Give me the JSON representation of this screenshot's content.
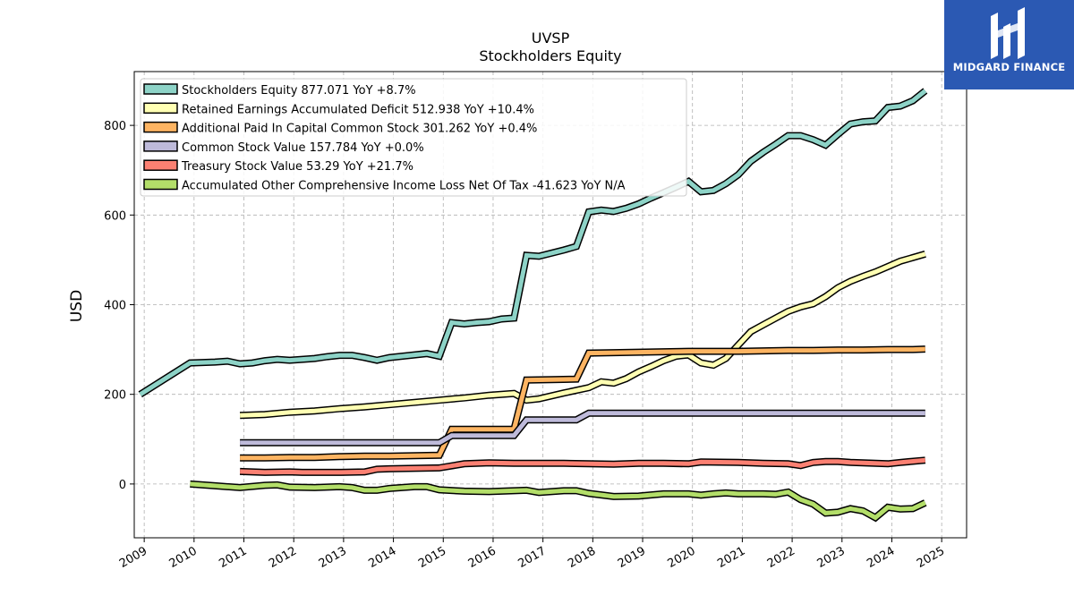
{
  "chart_data": {
    "type": "line",
    "title": "UVSP",
    "subtitle": "Stockholders  Equity",
    "ylabel": "USD",
    "xlabel": "",
    "xlim": [
      2008.8,
      2025.5
    ],
    "ylim": [
      -120,
      920
    ],
    "x_ticks": [
      2009,
      2010,
      2011,
      2012,
      2013,
      2014,
      2015,
      2016,
      2017,
      2018,
      2019,
      2020,
      2021,
      2022,
      2023,
      2024,
      2025
    ],
    "y_ticks": [
      0,
      200,
      400,
      600,
      800
    ],
    "grid": true,
    "legend_position": "top-left",
    "series": [
      {
        "name": "Stockholders Equity  877.071 YoY +8.7%",
        "color": "#8dd3c7",
        "points": [
          [
            2008.92,
            200
          ],
          [
            2009.92,
            270
          ],
          [
            2010.17,
            271
          ],
          [
            2010.42,
            272
          ],
          [
            2010.67,
            274
          ],
          [
            2010.92,
            268
          ],
          [
            2011.17,
            270
          ],
          [
            2011.42,
            275
          ],
          [
            2011.67,
            278
          ],
          [
            2011.92,
            276
          ],
          [
            2012.17,
            278
          ],
          [
            2012.42,
            280
          ],
          [
            2012.67,
            284
          ],
          [
            2012.92,
            287
          ],
          [
            2013.17,
            287
          ],
          [
            2013.42,
            282
          ],
          [
            2013.67,
            276
          ],
          [
            2013.92,
            282
          ],
          [
            2014.17,
            285
          ],
          [
            2014.42,
            288
          ],
          [
            2014.67,
            291
          ],
          [
            2014.92,
            285
          ],
          [
            2015.17,
            360
          ],
          [
            2015.42,
            357
          ],
          [
            2015.67,
            360
          ],
          [
            2015.92,
            362
          ],
          [
            2016.17,
            368
          ],
          [
            2016.42,
            370
          ],
          [
            2016.67,
            510
          ],
          [
            2016.92,
            508
          ],
          [
            2017.17,
            515
          ],
          [
            2017.42,
            522
          ],
          [
            2017.67,
            530
          ],
          [
            2017.92,
            607
          ],
          [
            2018.17,
            611
          ],
          [
            2018.42,
            608
          ],
          [
            2018.67,
            615
          ],
          [
            2018.92,
            625
          ],
          [
            2019.17,
            638
          ],
          [
            2019.42,
            650
          ],
          [
            2019.67,
            662
          ],
          [
            2019.92,
            675
          ],
          [
            2020.17,
            652
          ],
          [
            2020.42,
            655
          ],
          [
            2020.67,
            670
          ],
          [
            2020.92,
            690
          ],
          [
            2021.17,
            720
          ],
          [
            2021.42,
            740
          ],
          [
            2021.67,
            758
          ],
          [
            2021.92,
            777
          ],
          [
            2022.17,
            777
          ],
          [
            2022.42,
            768
          ],
          [
            2022.67,
            756
          ],
          [
            2022.92,
            780
          ],
          [
            2023.17,
            803
          ],
          [
            2023.42,
            808
          ],
          [
            2023.67,
            810
          ],
          [
            2023.92,
            840
          ],
          [
            2024.17,
            843
          ],
          [
            2024.42,
            855
          ],
          [
            2024.67,
            877
          ]
        ]
      },
      {
        "name": "Retained Earnings Accumulated Deficit  512.938 YoY +10.4%",
        "color": "#ffffb3",
        "points": [
          [
            2010.92,
            153
          ],
          [
            2011.42,
            155
          ],
          [
            2011.92,
            160
          ],
          [
            2012.42,
            163
          ],
          [
            2012.92,
            168
          ],
          [
            2013.42,
            172
          ],
          [
            2013.92,
            177
          ],
          [
            2014.42,
            182
          ],
          [
            2014.92,
            187
          ],
          [
            2015.42,
            192
          ],
          [
            2015.92,
            198
          ],
          [
            2016.42,
            202
          ],
          [
            2016.67,
            187
          ],
          [
            2016.92,
            190
          ],
          [
            2017.42,
            203
          ],
          [
            2017.92,
            215
          ],
          [
            2018.17,
            228
          ],
          [
            2018.42,
            225
          ],
          [
            2018.67,
            235
          ],
          [
            2018.92,
            250
          ],
          [
            2019.17,
            262
          ],
          [
            2019.42,
            275
          ],
          [
            2019.67,
            285
          ],
          [
            2019.92,
            288
          ],
          [
            2020.17,
            270
          ],
          [
            2020.42,
            265
          ],
          [
            2020.67,
            280
          ],
          [
            2020.92,
            310
          ],
          [
            2021.17,
            340
          ],
          [
            2021.42,
            355
          ],
          [
            2021.67,
            370
          ],
          [
            2021.92,
            385
          ],
          [
            2022.17,
            395
          ],
          [
            2022.42,
            402
          ],
          [
            2022.67,
            418
          ],
          [
            2022.92,
            438
          ],
          [
            2023.17,
            452
          ],
          [
            2023.42,
            463
          ],
          [
            2023.67,
            473
          ],
          [
            2023.92,
            485
          ],
          [
            2024.17,
            497
          ],
          [
            2024.42,
            505
          ],
          [
            2024.67,
            513
          ]
        ]
      },
      {
        "name": "Additional Paid In Capital Common Stock  301.262 YoY +0.4%",
        "color": "#fdb462",
        "points": [
          [
            2010.92,
            58
          ],
          [
            2011.42,
            58
          ],
          [
            2011.92,
            59
          ],
          [
            2012.42,
            59
          ],
          [
            2012.92,
            61
          ],
          [
            2013.42,
            62
          ],
          [
            2013.92,
            62
          ],
          [
            2014.42,
            63
          ],
          [
            2014.92,
            64
          ],
          [
            2015.17,
            122
          ],
          [
            2015.67,
            122
          ],
          [
            2016.17,
            122
          ],
          [
            2016.42,
            122
          ],
          [
            2016.67,
            232
          ],
          [
            2017.17,
            233
          ],
          [
            2017.67,
            234
          ],
          [
            2017.92,
            292
          ],
          [
            2018.42,
            293
          ],
          [
            2018.92,
            294
          ],
          [
            2019.42,
            295
          ],
          [
            2019.92,
            296
          ],
          [
            2020.42,
            296
          ],
          [
            2020.92,
            296
          ],
          [
            2021.42,
            297
          ],
          [
            2021.92,
            298
          ],
          [
            2022.42,
            298
          ],
          [
            2022.92,
            299
          ],
          [
            2023.42,
            299
          ],
          [
            2023.92,
            300
          ],
          [
            2024.42,
            300
          ],
          [
            2024.67,
            301
          ]
        ]
      },
      {
        "name": "Common Stock Value  157.784 YoY +0.0%",
        "color": "#bebada",
        "points": [
          [
            2010.92,
            92
          ],
          [
            2011.92,
            92
          ],
          [
            2012.92,
            92
          ],
          [
            2013.92,
            92
          ],
          [
            2014.92,
            92
          ],
          [
            2015.17,
            108
          ],
          [
            2015.67,
            108
          ],
          [
            2016.17,
            108
          ],
          [
            2016.42,
            108
          ],
          [
            2016.67,
            143
          ],
          [
            2017.17,
            143
          ],
          [
            2017.67,
            143
          ],
          [
            2017.92,
            158
          ],
          [
            2018.92,
            158
          ],
          [
            2019.92,
            158
          ],
          [
            2020.92,
            158
          ],
          [
            2021.92,
            158
          ],
          [
            2022.92,
            158
          ],
          [
            2023.92,
            158
          ],
          [
            2024.67,
            158
          ]
        ]
      },
      {
        "name": "Treasury Stock Value  53.29 YoY +21.7%",
        "color": "#fb8072",
        "points": [
          [
            2010.92,
            28
          ],
          [
            2011.42,
            26
          ],
          [
            2011.92,
            27
          ],
          [
            2012.17,
            26
          ],
          [
            2012.92,
            26
          ],
          [
            2013.42,
            27
          ],
          [
            2013.67,
            33
          ],
          [
            2013.92,
            34
          ],
          [
            2014.42,
            35
          ],
          [
            2014.92,
            36
          ],
          [
            2015.42,
            45
          ],
          [
            2015.92,
            47
          ],
          [
            2016.42,
            46
          ],
          [
            2016.92,
            46
          ],
          [
            2017.42,
            46
          ],
          [
            2017.92,
            45
          ],
          [
            2018.42,
            44
          ],
          [
            2018.92,
            46
          ],
          [
            2019.42,
            46
          ],
          [
            2019.92,
            45
          ],
          [
            2020.17,
            49
          ],
          [
            2020.92,
            48
          ],
          [
            2021.42,
            46
          ],
          [
            2021.92,
            45
          ],
          [
            2022.17,
            41
          ],
          [
            2022.42,
            48
          ],
          [
            2022.67,
            50
          ],
          [
            2022.92,
            50
          ],
          [
            2023.17,
            48
          ],
          [
            2023.67,
            46
          ],
          [
            2023.92,
            45
          ],
          [
            2024.17,
            48
          ],
          [
            2024.67,
            53
          ]
        ]
      },
      {
        "name": "Accumulated Other Comprehensive Income Loss Net Of Tax  -41.623 YoY N/A",
        "color": "#b3de69",
        "points": [
          [
            2009.92,
            0
          ],
          [
            2010.42,
            -4
          ],
          [
            2010.92,
            -8
          ],
          [
            2011.42,
            -3
          ],
          [
            2011.67,
            -2
          ],
          [
            2011.92,
            -7
          ],
          [
            2012.42,
            -8
          ],
          [
            2012.92,
            -6
          ],
          [
            2013.17,
            -8
          ],
          [
            2013.42,
            -14
          ],
          [
            2013.67,
            -14
          ],
          [
            2013.92,
            -10
          ],
          [
            2014.42,
            -6
          ],
          [
            2014.67,
            -6
          ],
          [
            2014.92,
            -13
          ],
          [
            2015.42,
            -16
          ],
          [
            2015.92,
            -17
          ],
          [
            2016.42,
            -15
          ],
          [
            2016.67,
            -14
          ],
          [
            2016.92,
            -19
          ],
          [
            2017.42,
            -15
          ],
          [
            2017.67,
            -15
          ],
          [
            2017.92,
            -21
          ],
          [
            2018.42,
            -28
          ],
          [
            2018.92,
            -27
          ],
          [
            2019.42,
            -22
          ],
          [
            2019.92,
            -22
          ],
          [
            2020.17,
            -25
          ],
          [
            2020.42,
            -22
          ],
          [
            2020.67,
            -20
          ],
          [
            2020.92,
            -22
          ],
          [
            2021.42,
            -22
          ],
          [
            2021.67,
            -23
          ],
          [
            2021.92,
            -18
          ],
          [
            2022.17,
            -35
          ],
          [
            2022.42,
            -45
          ],
          [
            2022.67,
            -65
          ],
          [
            2022.92,
            -63
          ],
          [
            2023.17,
            -55
          ],
          [
            2023.42,
            -60
          ],
          [
            2023.67,
            -75
          ],
          [
            2023.92,
            -52
          ],
          [
            2024.17,
            -56
          ],
          [
            2024.42,
            -55
          ],
          [
            2024.67,
            -42
          ]
        ]
      }
    ]
  },
  "logo": {
    "text": "MIDGARD FINANCE",
    "color": "#2b59b3"
  }
}
